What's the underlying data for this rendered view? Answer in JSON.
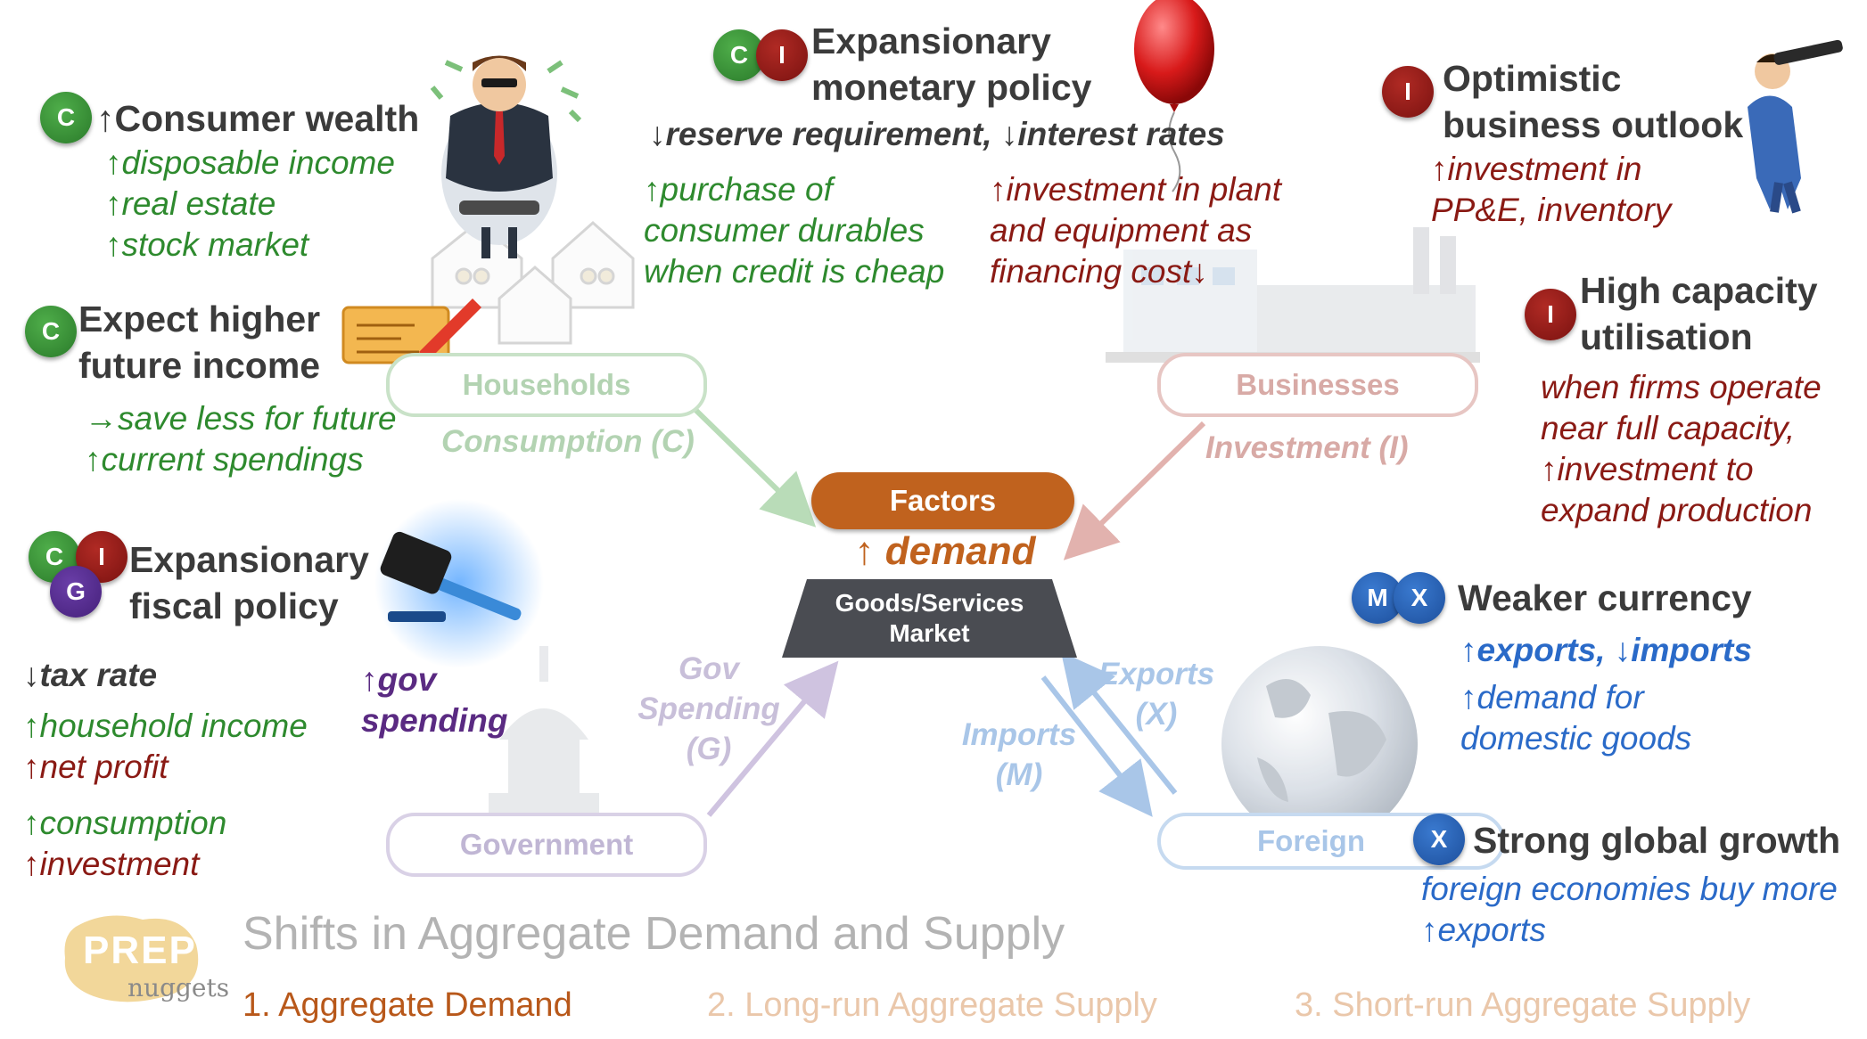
{
  "center": {
    "factors_label": "Factors",
    "demand_label": "↑ demand",
    "market_line1": "Goods/Services",
    "market_line2": "Market"
  },
  "sectors": {
    "households": "Households",
    "businesses": "Businesses",
    "government": "Government",
    "foreign": "Foreign"
  },
  "flows": {
    "consumption": "Consumption (C)",
    "investment": "Investment (I)",
    "gov_spending": [
      "Gov",
      "Spending",
      "(G)"
    ],
    "exports": [
      "Exports",
      "(X)"
    ],
    "imports": [
      "Imports",
      "(M)"
    ]
  },
  "factors": {
    "consumer_wealth": {
      "badges": [
        "C"
      ],
      "title": "↑Consumer wealth",
      "items": [
        "↑disposable income",
        "↑real estate",
        "↑stock market"
      ]
    },
    "expect_income": {
      "badges": [
        "C"
      ],
      "title": [
        "Expect higher",
        "future income"
      ],
      "items": [
        "→save less for future",
        "↑current spendings"
      ]
    },
    "monetary": {
      "badges": [
        "C",
        "I"
      ],
      "title": [
        "Expansionary",
        "monetary policy"
      ],
      "subtitle": "↓reserve requirement, ↓interest rates",
      "consumer_effect": [
        "↑purchase of",
        "consumer durables",
        "when credit is cheap"
      ],
      "business_effect": [
        "↑investment in plant",
        "and equipment as",
        "financing cost↓"
      ]
    },
    "optimistic": {
      "badges": [
        "I"
      ],
      "title": [
        "Optimistic",
        "business outlook"
      ],
      "items": [
        "↑investment in",
        "PP&E, inventory"
      ]
    },
    "capacity": {
      "badges": [
        "I"
      ],
      "title": [
        "High capacity",
        "utilisation"
      ],
      "items": [
        "when firms operate",
        "near full capacity,",
        "↑investment to",
        "expand production"
      ]
    },
    "fiscal": {
      "badges": [
        "C",
        "I",
        "G"
      ],
      "title": [
        "Expansionary",
        "fiscal policy"
      ],
      "tax": "↓tax rate",
      "gov_spending": [
        "↑gov",
        "spending"
      ],
      "items_a": [
        "↑household income",
        "↑net profit"
      ],
      "items_b": [
        "↑consumption",
        "↑investment"
      ]
    },
    "currency": {
      "badges": [
        "M",
        "X"
      ],
      "title": "Weaker currency",
      "bold_line": "↑exports, ↓imports",
      "items": [
        "↑demand for",
        "domestic goods"
      ]
    },
    "global_growth": {
      "badges": [
        "X"
      ],
      "title": "Strong global growth",
      "items": [
        "foreign economies buy more",
        "↑exports"
      ]
    }
  },
  "footer": {
    "logo_line1": "PREP",
    "logo_line2": "nuggets",
    "title": "Shifts in Aggregate Demand and Supply",
    "tabs": [
      "1. Aggregate Demand",
      "2. Long-run Aggregate Supply",
      "3. Short-run Aggregate Supply"
    ]
  },
  "colors": {
    "consumption": "#2e8a2e",
    "investment": "#8a1a14",
    "government": "#5a2a82",
    "foreign": "#2a6ac8",
    "factors_pill": "#c0621e",
    "market": "#4a4c52"
  }
}
